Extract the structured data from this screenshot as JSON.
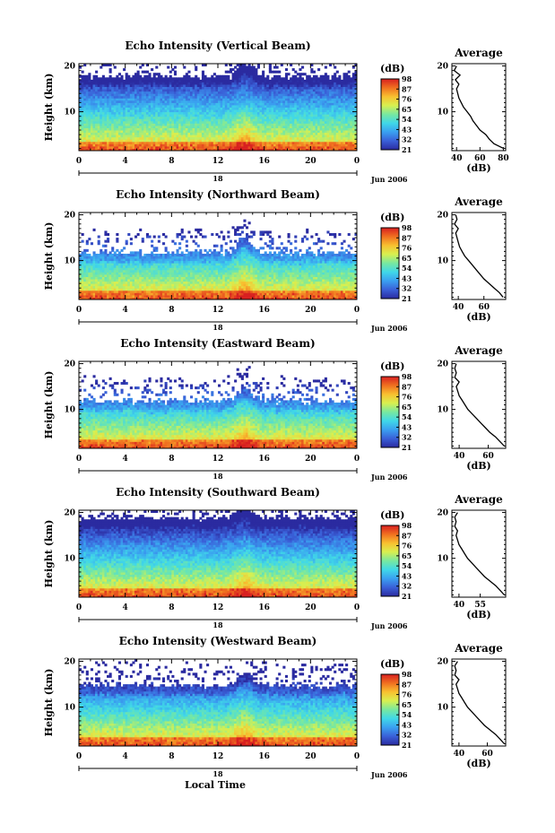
{
  "figure": {
    "xlabel_bottom": "Local Time",
    "colorbar_title": "(dB)",
    "colorbar_ticks": [
      "21",
      "32",
      "43",
      "54",
      "65",
      "76",
      "87",
      "98"
    ],
    "colorbar_stops": [
      "#2b2ba0",
      "#3a60d8",
      "#3aa0f0",
      "#40d8e8",
      "#78e8a0",
      "#d8f050",
      "#f8c030",
      "#f07020",
      "#d82020"
    ],
    "date_label": "Jun 2006",
    "day_marker": "18",
    "average_xlabel": "(dB)"
  },
  "chart_data": [
    {
      "type": "heatmap",
      "title": "Echo Intensity (Vertical Beam)",
      "ylabel": "Height (km)",
      "xticks": [
        "0",
        "4",
        "8",
        "12",
        "16",
        "20",
        "0"
      ],
      "yticks": [
        "10",
        "20"
      ],
      "xlim": [
        0,
        24
      ],
      "ylim": [
        1.5,
        20.5
      ],
      "color_range": [
        21,
        98
      ],
      "cloud_top_km": 17.5,
      "average": {
        "title": "Average",
        "xticks": [
          "40",
          "60",
          "80"
        ],
        "xlim": [
          36,
          82
        ],
        "yticks": [
          "10",
          "20"
        ],
        "ylim": [
          1.5,
          20.5
        ],
        "heights": [
          2,
          3,
          4,
          5,
          6,
          7,
          8,
          9,
          10,
          11,
          12,
          13,
          14,
          15,
          16,
          17,
          18,
          19,
          20
        ],
        "values": [
          80,
          72,
          68,
          65,
          60,
          57,
          54,
          52,
          49,
          46,
          44,
          42,
          41,
          40,
          42,
          39,
          43,
          38,
          40
        ]
      }
    },
    {
      "type": "heatmap",
      "title": "Echo Intensity (Northward Beam)",
      "ylabel": "Height (km)",
      "xticks": [
        "0",
        "4",
        "8",
        "12",
        "16",
        "20",
        "0"
      ],
      "yticks": [
        "10",
        "20"
      ],
      "xlim": [
        0,
        24
      ],
      "ylim": [
        1.5,
        20.5
      ],
      "color_range": [
        21,
        98
      ],
      "cloud_top_km": 11.5,
      "average": {
        "title": "Average",
        "xticks": [
          "40",
          "60"
        ],
        "xlim": [
          35,
          77
        ],
        "yticks": [
          "10",
          "20"
        ],
        "ylim": [
          1.5,
          20.5
        ],
        "heights": [
          2,
          3,
          4,
          5,
          6,
          7,
          8,
          9,
          10,
          11,
          12,
          13,
          14,
          15,
          16,
          17,
          18,
          19,
          20
        ],
        "values": [
          75,
          72,
          68,
          64,
          60,
          57,
          54,
          51,
          48,
          45,
          43,
          41,
          40,
          39,
          38,
          40,
          37,
          39,
          38
        ]
      }
    },
    {
      "type": "heatmap",
      "title": "Echo Intensity (Eastward Beam)",
      "ylabel": "Height (km)",
      "xticks": [
        "0",
        "4",
        "8",
        "12",
        "16",
        "20",
        "0"
      ],
      "yticks": [
        "10",
        "20"
      ],
      "xlim": [
        0,
        24
      ],
      "ylim": [
        1.5,
        20.5
      ],
      "color_range": [
        21,
        98
      ],
      "cloud_top_km": 11.5,
      "average": {
        "title": "Average",
        "xticks": [
          "40",
          "60"
        ],
        "xlim": [
          35,
          72
        ],
        "yticks": [
          "10",
          "20"
        ],
        "ylim": [
          1.5,
          20.5
        ],
        "heights": [
          2,
          3,
          4,
          5,
          6,
          7,
          8,
          9,
          10,
          11,
          12,
          13,
          14,
          15,
          16,
          17,
          18,
          19,
          20
        ],
        "values": [
          71,
          68,
          65,
          61,
          58,
          55,
          52,
          49,
          46,
          44,
          42,
          40,
          39,
          38,
          40,
          37,
          38,
          37,
          38
        ]
      }
    },
    {
      "type": "heatmap",
      "title": "Echo Intensity (Southward Beam)",
      "ylabel": "Height (km)",
      "xticks": [
        "0",
        "4",
        "8",
        "12",
        "16",
        "20",
        "0"
      ],
      "yticks": [
        "10",
        "20"
      ],
      "xlim": [
        0,
        24
      ],
      "ylim": [
        1.5,
        20.5
      ],
      "color_range": [
        21,
        98
      ],
      "cloud_top_km": 18.5,
      "average": {
        "title": "Average",
        "xticks": [
          "40",
          "55"
        ],
        "xlim": [
          35,
          73
        ],
        "yticks": [
          "10",
          "20"
        ],
        "ylim": [
          1.5,
          20.5
        ],
        "heights": [
          2,
          3,
          4,
          5,
          6,
          7,
          8,
          9,
          10,
          11,
          12,
          13,
          14,
          15,
          16,
          17,
          18,
          19,
          20
        ],
        "values": [
          72,
          69,
          66,
          62,
          58,
          55,
          52,
          49,
          46,
          44,
          42,
          40,
          39,
          38,
          39,
          37,
          38,
          37,
          39
        ]
      }
    },
    {
      "type": "heatmap",
      "title": "Echo Intensity (Westward Beam)",
      "ylabel": "Height (km)",
      "xticks": [
        "0",
        "4",
        "8",
        "12",
        "16",
        "20",
        "0"
      ],
      "yticks": [
        "10",
        "20"
      ],
      "xlim": [
        0,
        24
      ],
      "ylim": [
        1.5,
        20.5
      ],
      "color_range": [
        21,
        98
      ],
      "cloud_top_km": 14.5,
      "average": {
        "title": "Average",
        "xticks": [
          "40",
          "60"
        ],
        "xlim": [
          35,
          73
        ],
        "yticks": [
          "10",
          "20"
        ],
        "ylim": [
          1.5,
          20.5
        ],
        "heights": [
          2,
          3,
          4,
          5,
          6,
          7,
          8,
          9,
          10,
          11,
          12,
          13,
          14,
          15,
          16,
          17,
          18,
          19,
          20
        ],
        "values": [
          72,
          69,
          66,
          62,
          58,
          55,
          52,
          49,
          46,
          44,
          42,
          40,
          39,
          38,
          40,
          37,
          38,
          37,
          39
        ]
      }
    }
  ]
}
